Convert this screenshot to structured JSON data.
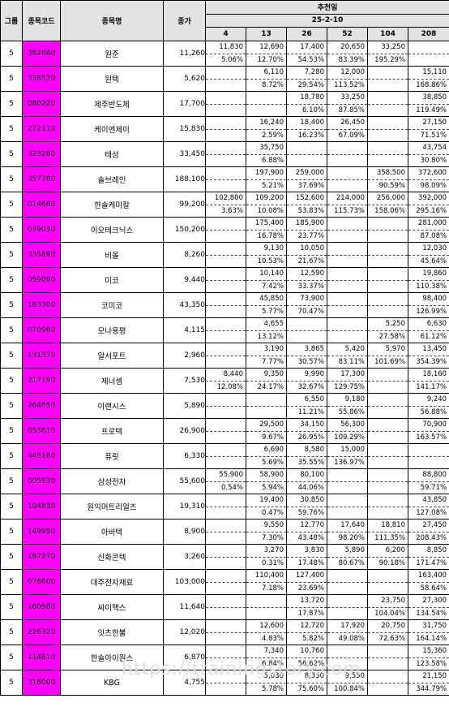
{
  "header": {
    "group": "그룹",
    "code": "종목코드",
    "name": "종목명",
    "price": "종가",
    "recommend_day": "추천일",
    "date": "25-2-10",
    "periods": [
      "4",
      "13",
      "26",
      "52",
      "104",
      "208"
    ]
  },
  "rows": [
    {
      "group": "5",
      "code": "382840",
      "name": "원준",
      "price": "11,260",
      "cells": [
        [
          "11,830",
          "5.06%"
        ],
        [
          "12,690",
          "12.70%"
        ],
        [
          "17,400",
          "54.53%"
        ],
        [
          "20,650",
          "83.39%"
        ],
        [
          "33,250",
          "195.29%"
        ],
        [
          "",
          ""
        ]
      ]
    },
    {
      "group": "5",
      "code": "338570",
      "name": "원텍",
      "price": "5,620",
      "cells": [
        [
          "",
          ""
        ],
        [
          "6,110",
          "8.72%"
        ],
        [
          "7,280",
          "29.54%"
        ],
        [
          "12,000",
          "113.52%"
        ],
        [
          "",
          ""
        ],
        [
          "15,110",
          "168.86%"
        ]
      ]
    },
    {
      "group": "5",
      "code": "080220",
      "name": "제주반도체",
      "price": "17,700",
      "cells": [
        [
          "",
          ""
        ],
        [
          "",
          ""
        ],
        [
          "18,780",
          "6.10%"
        ],
        [
          "33,250",
          "87.85%"
        ],
        [
          "",
          ""
        ],
        [
          "38,850",
          "119.49%"
        ]
      ]
    },
    {
      "group": "5",
      "code": "272110",
      "name": "케이엔제이",
      "price": "15,830",
      "cells": [
        [
          "",
          ""
        ],
        [
          "16,240",
          "2.59%"
        ],
        [
          "18,400",
          "16.23%"
        ],
        [
          "26,450",
          "67.09%"
        ],
        [
          "",
          ""
        ],
        [
          "27,150",
          "71.51%"
        ]
      ]
    },
    {
      "group": "5",
      "code": "323280",
      "name": "태성",
      "price": "33,450",
      "cells": [
        [
          "",
          ""
        ],
        [
          "35,750",
          "6.88%"
        ],
        [
          "",
          ""
        ],
        [
          "",
          ""
        ],
        [
          "",
          ""
        ],
        [
          "43,754",
          "30.80%"
        ]
      ]
    },
    {
      "group": "5",
      "code": "357780",
      "name": "솔브레인",
      "price": "188,100",
      "cells": [
        [
          "",
          ""
        ],
        [
          "197,900",
          "5.21%"
        ],
        [
          "259,000",
          "37.69%"
        ],
        [
          "",
          ""
        ],
        [
          "358,500",
          "90.59%"
        ],
        [
          "372,600",
          "98.09%"
        ]
      ]
    },
    {
      "group": "5",
      "code": "014680",
      "name": "한솔케미칼",
      "price": "99,200",
      "cells": [
        [
          "102,800",
          "3.63%"
        ],
        [
          "109,200",
          "10.08%"
        ],
        [
          "152,600",
          "53.83%"
        ],
        [
          "214,000",
          "115.73%"
        ],
        [
          "256,000",
          "158.06%"
        ],
        [
          "392,000",
          "295.16%"
        ]
      ]
    },
    {
      "group": "5",
      "code": "039030",
      "name": "이오테크닉스",
      "price": "150,200",
      "cells": [
        [
          "",
          ""
        ],
        [
          "175,400",
          "16.78%"
        ],
        [
          "185,900",
          "23.77%"
        ],
        [
          "",
          ""
        ],
        [
          "",
          ""
        ],
        [
          "281,000",
          "87.08%"
        ]
      ]
    },
    {
      "group": "5",
      "code": "335890",
      "name": "비올",
      "price": "8,260",
      "cells": [
        [
          "",
          ""
        ],
        [
          "9,130",
          "10.53%"
        ],
        [
          "10,050",
          "21.67%"
        ],
        [
          "",
          ""
        ],
        [
          "",
          ""
        ],
        [
          "12,030",
          "45.64%"
        ]
      ]
    },
    {
      "group": "5",
      "code": "059090",
      "name": "미코",
      "price": "9,440",
      "cells": [
        [
          "",
          ""
        ],
        [
          "10,140",
          "7.42%"
        ],
        [
          "12,590",
          "33.37%"
        ],
        [
          "",
          ""
        ],
        [
          "",
          ""
        ],
        [
          "19,860",
          "110.38%"
        ]
      ]
    },
    {
      "group": "5",
      "code": "183300",
      "name": "코미코",
      "price": "43,350",
      "cells": [
        [
          "",
          ""
        ],
        [
          "45,850",
          "5.77%"
        ],
        [
          "73,900",
          "70.47%"
        ],
        [
          "",
          ""
        ],
        [
          "",
          ""
        ],
        [
          "98,400",
          "126.99%"
        ]
      ]
    },
    {
      "group": "5",
      "code": "070960",
      "name": "모나용평",
      "price": "4,115",
      "cells": [
        [
          "",
          ""
        ],
        [
          "4,655",
          "13.12%"
        ],
        [
          "",
          ""
        ],
        [
          "",
          ""
        ],
        [
          "5,250",
          "27.58%"
        ],
        [
          "6,630",
          "61.12%"
        ]
      ]
    },
    {
      "group": "5",
      "code": "131370",
      "name": "알서포트",
      "price": "2,960",
      "cells": [
        [
          "",
          ""
        ],
        [
          "3,190",
          "7.77%"
        ],
        [
          "3,865",
          "30.57%"
        ],
        [
          "5,420",
          "83.11%"
        ],
        [
          "5,970",
          "101.69%"
        ],
        [
          "13,450",
          "354.39%"
        ]
      ]
    },
    {
      "group": "5",
      "code": "217190",
      "name": "제너셈",
      "price": "7,530",
      "cells": [
        [
          "8,440",
          "12.08%"
        ],
        [
          "9,350",
          "24.17%"
        ],
        [
          "9,990",
          "32.67%"
        ],
        [
          "17,300",
          "129.75%"
        ],
        [
          "",
          ""
        ],
        [
          "18,160",
          "141.17%"
        ]
      ]
    },
    {
      "group": "5",
      "code": "264850",
      "name": "이랜시스",
      "price": "5,890",
      "cells": [
        [
          "",
          ""
        ],
        [
          "",
          ""
        ],
        [
          "6,550",
          "11.21%"
        ],
        [
          "9,180",
          "55.86%"
        ],
        [
          "",
          ""
        ],
        [
          "9,240",
          "56.88%"
        ]
      ]
    },
    {
      "group": "5",
      "code": "053610",
      "name": "프로텍",
      "price": "26,900",
      "cells": [
        [
          "",
          ""
        ],
        [
          "29,500",
          "9.67%"
        ],
        [
          "34,150",
          "26.95%"
        ],
        [
          "56,300",
          "109.29%"
        ],
        [
          "",
          ""
        ],
        [
          "70,900",
          "163.57%"
        ]
      ]
    },
    {
      "group": "5",
      "code": "445180",
      "name": "퓨릿",
      "price": "6,330",
      "cells": [
        [
          "",
          ""
        ],
        [
          "6,690",
          "5.69%"
        ],
        [
          "8,580",
          "35.55%"
        ],
        [
          "15,000",
          "136.97%"
        ],
        [
          "",
          ""
        ],
        [
          "",
          ""
        ]
      ]
    },
    {
      "group": "5",
      "code": "005930",
      "name": "삼성전자",
      "price": "55,600",
      "cells": [
        [
          "55,900",
          "0.54%"
        ],
        [
          "58,900",
          "5.94%"
        ],
        [
          "80,100",
          "44.06%"
        ],
        [
          "",
          ""
        ],
        [
          "",
          ""
        ],
        [
          "88,800",
          "59.71%"
        ]
      ]
    },
    {
      "group": "5",
      "code": "104830",
      "name": "원익머트리얼즈",
      "price": "19,310",
      "cells": [
        [
          "",
          ""
        ],
        [
          "19,400",
          "0.47%"
        ],
        [
          "30,850",
          "59.76%"
        ],
        [
          "",
          ""
        ],
        [
          "",
          ""
        ],
        [
          "43,850",
          "127.08%"
        ]
      ]
    },
    {
      "group": "5",
      "code": "149950",
      "name": "아바텍",
      "price": "8,900",
      "cells": [
        [
          "",
          ""
        ],
        [
          "9,550",
          "7.30%"
        ],
        [
          "12,770",
          "43.48%"
        ],
        [
          "17,640",
          "98.20%"
        ],
        [
          "18,810",
          "111.35%"
        ],
        [
          "27,450",
          "208.43%"
        ]
      ]
    },
    {
      "group": "5",
      "code": "187270",
      "name": "신화콘텍",
      "price": "3,260",
      "cells": [
        [
          "",
          ""
        ],
        [
          "3,270",
          "0.31%"
        ],
        [
          "3,830",
          "17.48%"
        ],
        [
          "5,890",
          "80.67%"
        ],
        [
          "6,200",
          "90.18%"
        ],
        [
          "8,850",
          "171.47%"
        ]
      ]
    },
    {
      "group": "5",
      "code": "078600",
      "name": "대주전자재료",
      "price": "103,000",
      "cells": [
        [
          "",
          ""
        ],
        [
          "110,400",
          "7.18%"
        ],
        [
          "127,400",
          "23.69%"
        ],
        [
          "",
          ""
        ],
        [
          "",
          ""
        ],
        [
          "163,400",
          "58.64%"
        ]
      ]
    },
    {
      "group": "5",
      "code": "160980",
      "name": "싸이맥스",
      "price": "11,640",
      "cells": [
        [
          "",
          ""
        ],
        [
          "",
          ""
        ],
        [
          "13,720",
          "17.87%"
        ],
        [
          "",
          ""
        ],
        [
          "23,750",
          "104.04%"
        ],
        [
          "27,300",
          "134.54%"
        ]
      ]
    },
    {
      "group": "5",
      "code": "226320",
      "name": "잇츠한불",
      "price": "12,020",
      "cells": [
        [
          "",
          ""
        ],
        [
          "12,600",
          "4.83%"
        ],
        [
          "12,720",
          "5.82%"
        ],
        [
          "17,920",
          "49.08%"
        ],
        [
          "20,750",
          "72.63%"
        ],
        [
          "31,750",
          "164.14%"
        ]
      ]
    },
    {
      "group": "5",
      "code": "114810",
      "name": "한솔아이원스",
      "price": "6,870",
      "cells": [
        [
          "",
          ""
        ],
        [
          "7,340",
          "6.84%"
        ],
        [
          "10,760",
          "56.62%"
        ],
        [
          "",
          ""
        ],
        [
          "",
          ""
        ],
        [
          "15,360",
          "123.58%"
        ]
      ]
    },
    {
      "group": "5",
      "code": "318000",
      "name": "KBG",
      "price": "4,755",
      "cells": [
        [
          "",
          ""
        ],
        [
          "5,030",
          "5.78%"
        ],
        [
          "8,350",
          "75.60%"
        ],
        [
          "9,550",
          "100.84%"
        ],
        [
          "",
          ""
        ],
        [
          "21,150",
          "344.79%"
        ]
      ]
    }
  ],
  "watermark": "https://trainingstory.com"
}
